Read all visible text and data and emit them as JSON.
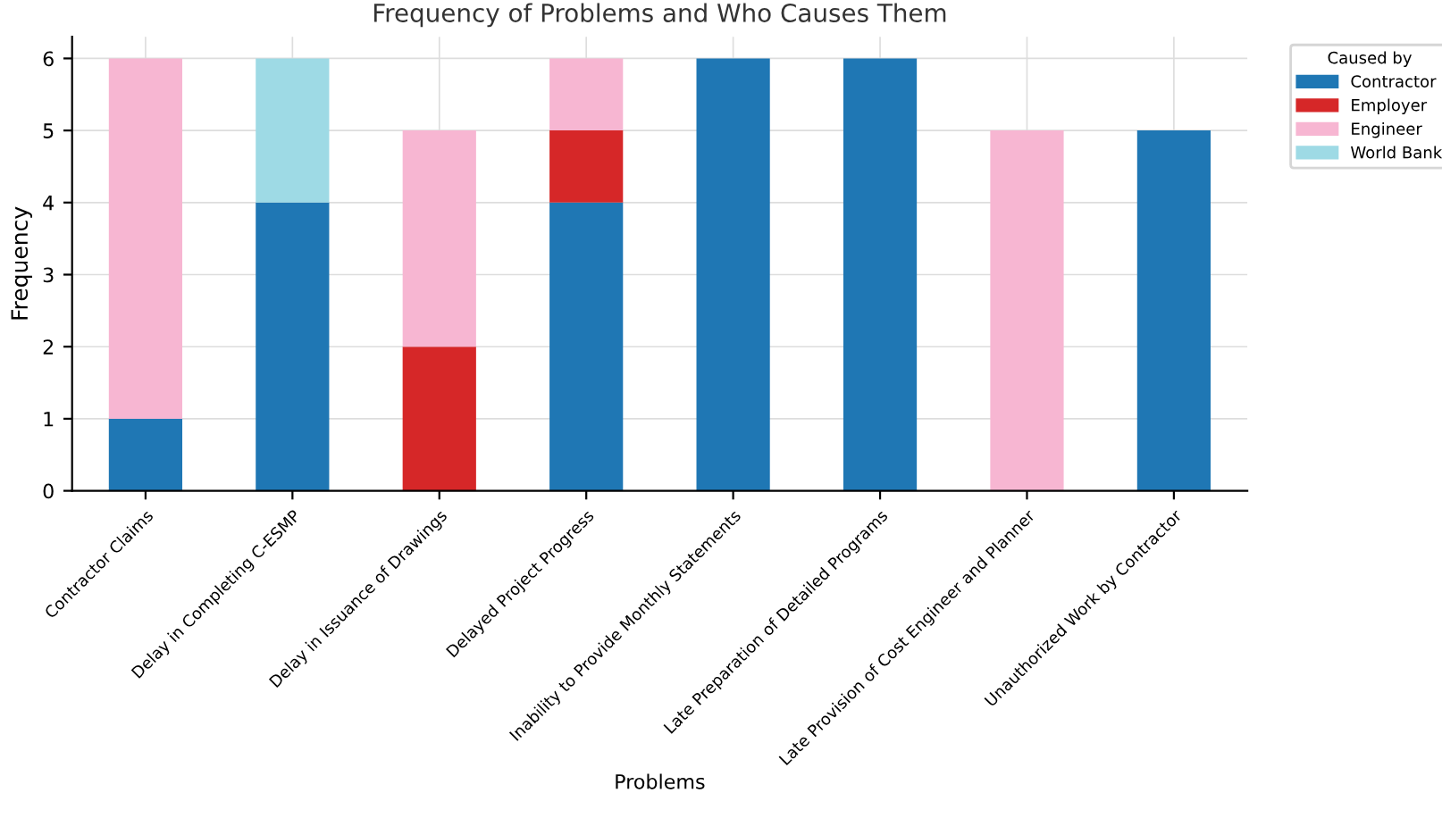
{
  "chart_data": {
    "type": "bar",
    "stacked": true,
    "title": "Frequency of Problems and Who Causes Them",
    "xlabel": "Problems",
    "ylabel": "Frequency",
    "legend_title": "Caused by",
    "legend": "top right",
    "grid": true,
    "categories": [
      "Contractor Claims",
      "Delay in Completing C-ESMP",
      "Delay in Issuance of Drawings",
      "Delayed Project Progress",
      "Inability to Provide Monthly Statements",
      "Late Preparation of Detailed Programs",
      "Late Provision of Cost Engineer and Planner",
      "Unauthorized Work by Contractor"
    ],
    "series": [
      {
        "name": "Contractor",
        "color": "#1f77b4",
        "values": [
          1,
          4,
          0,
          4,
          6,
          6,
          0,
          5
        ]
      },
      {
        "name": "Employer",
        "color": "#d62728",
        "values": [
          0,
          0,
          2,
          1,
          0,
          0,
          0,
          0
        ]
      },
      {
        "name": "Engineer",
        "color": "#f7b6d2",
        "values": [
          5,
          0,
          3,
          1,
          0,
          0,
          5,
          0
        ]
      },
      {
        "name": "World Bank",
        "color": "#9edae5",
        "values": [
          0,
          2,
          0,
          0,
          0,
          0,
          0,
          0
        ]
      }
    ],
    "ylim": [
      0,
      6.3
    ],
    "yticks": [
      0,
      1,
      2,
      3,
      4,
      5,
      6
    ]
  }
}
